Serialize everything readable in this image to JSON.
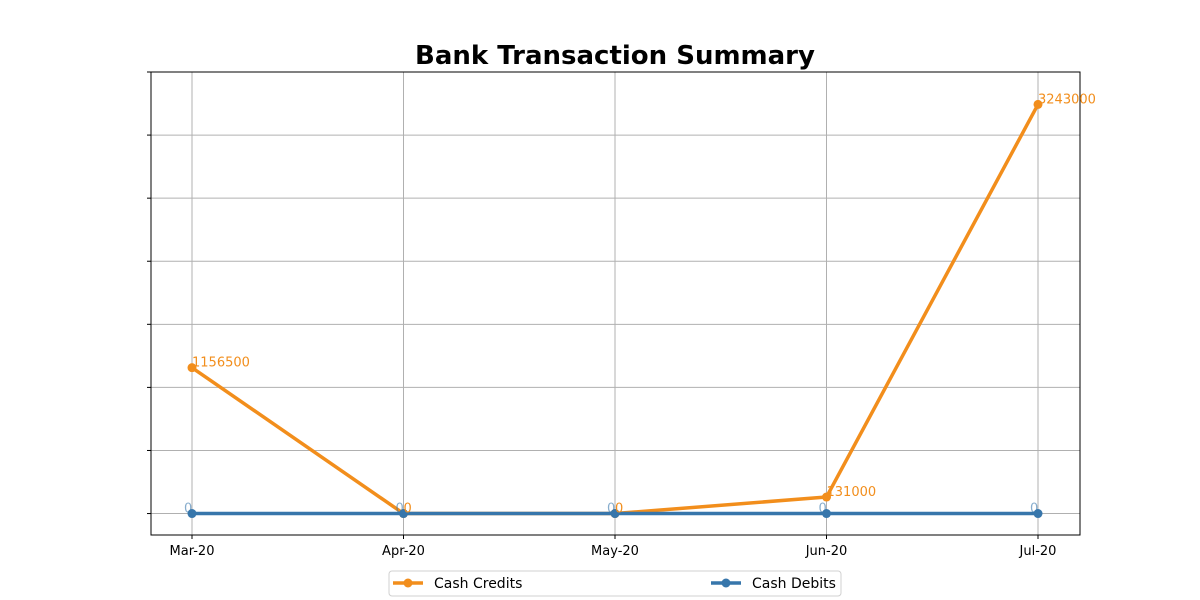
{
  "chart_data": {
    "type": "line",
    "title": "Bank Transaction Summary",
    "xlabel": "",
    "ylabel": "",
    "categories": [
      "Mar-20",
      "Apr-20",
      "May-20",
      "Jun-20",
      "Jul-20"
    ],
    "ylim": [
      -170000,
      3500000
    ],
    "y_ticks_labeled": false,
    "grid": true,
    "legend_position": "bottom-center",
    "series": [
      {
        "name": "Cash Credits",
        "color": "#f28e1c",
        "values": [
          1156500,
          0,
          0,
          131000,
          3243000
        ]
      },
      {
        "name": "Cash Debits",
        "color": "#3776ab",
        "values": [
          0,
          0,
          0,
          0,
          0
        ]
      }
    ]
  }
}
